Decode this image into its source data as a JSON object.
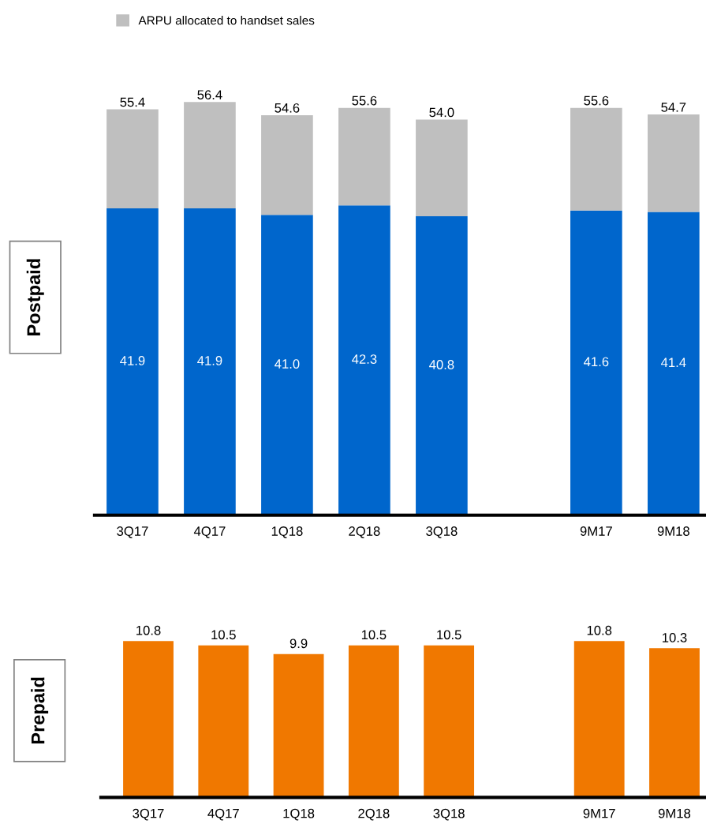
{
  "chart_data": [
    {
      "type": "bar",
      "title": "Postpaid",
      "stacked": true,
      "legend": "top left",
      "grid": false,
      "categories": [
        "3Q17",
        "4Q17",
        "1Q18",
        "2Q18",
        "3Q18",
        null,
        "9M17",
        "9M18"
      ],
      "series": [
        {
          "color": "#0066cc",
          "values": [
            41.9,
            41.9,
            41.0,
            42.3,
            40.8,
            null,
            41.6,
            41.4
          ],
          "value_labels": [
            "41.9",
            "41.9",
            "41.0",
            "42.3",
            "40.8",
            null,
            "41.6",
            "41.4"
          ]
        },
        {
          "name": "ARPU allocated to handset sales",
          "color": "#bfbfbf",
          "values": [
            13.5,
            14.5,
            13.6,
            13.3,
            13.2,
            null,
            14.0,
            13.3
          ]
        }
      ],
      "totals": [
        "55.4",
        "56.4",
        "54.6",
        "55.6",
        "54.0",
        null,
        "55.6",
        "54.7"
      ]
    },
    {
      "type": "bar",
      "title": "Prepaid",
      "grid": false,
      "data_labels": true,
      "categories": [
        "3Q17",
        "4Q17",
        "1Q18",
        "2Q18",
        "3Q18",
        null,
        "9M17",
        "9M18"
      ],
      "series": [
        {
          "color": "#f07800",
          "values": [
            10.8,
            10.5,
            9.9,
            10.5,
            10.5,
            null,
            10.8,
            10.3
          ]
        }
      ]
    }
  ]
}
